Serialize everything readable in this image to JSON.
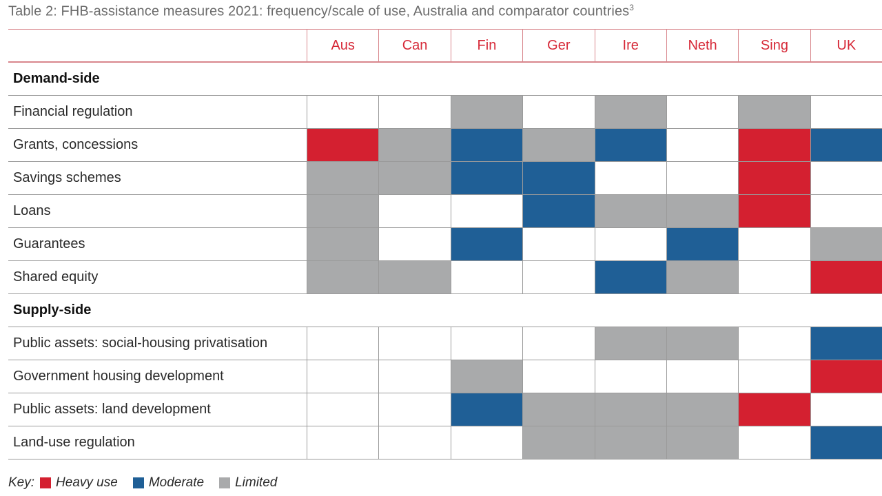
{
  "title": "Table 2: FHB-assistance measures 2021: frequency/scale of use, Australia and comparator countries",
  "title_note": "3",
  "colors": {
    "heavy": "#d42030",
    "moderate": "#1f5f96",
    "limited": "#a9aaab",
    "none": "#ffffff",
    "header_text": "#d62837"
  },
  "key": {
    "label": "Key:",
    "items": [
      {
        "level": "heavy",
        "label": "Heavy use"
      },
      {
        "level": "moderate",
        "label": "Moderate"
      },
      {
        "level": "limited",
        "label": "Limited"
      }
    ]
  },
  "chart_data": {
    "type": "heatmap",
    "columns": [
      "Aus",
      "Can",
      "Fin",
      "Ger",
      "Ire",
      "Neth",
      "Sing",
      "UK"
    ],
    "sections": [
      {
        "name": "Demand-side",
        "rows": [
          {
            "label": "Financial regulation",
            "values": [
              "none",
              "none",
              "limited",
              "none",
              "limited",
              "none",
              "limited",
              "none"
            ]
          },
          {
            "label": "Grants, concessions",
            "values": [
              "heavy",
              "limited",
              "moderate",
              "limited",
              "moderate",
              "none",
              "heavy",
              "moderate"
            ]
          },
          {
            "label": "Savings schemes",
            "values": [
              "limited",
              "limited",
              "moderate",
              "moderate",
              "none",
              "none",
              "heavy",
              "none"
            ]
          },
          {
            "label": "Loans",
            "values": [
              "limited",
              "none",
              "none",
              "moderate",
              "limited",
              "limited",
              "heavy",
              "none"
            ]
          },
          {
            "label": "Guarantees",
            "values": [
              "limited",
              "none",
              "moderate",
              "none",
              "none",
              "moderate",
              "none",
              "limited"
            ]
          },
          {
            "label": "Shared equity",
            "values": [
              "limited",
              "limited",
              "none",
              "none",
              "moderate",
              "limited",
              "none",
              "heavy"
            ]
          }
        ]
      },
      {
        "name": "Supply-side",
        "rows": [
          {
            "label": "Public assets: social-housing privatisation",
            "values": [
              "none",
              "none",
              "none",
              "none",
              "limited",
              "limited",
              "none",
              "moderate"
            ]
          },
          {
            "label": "Government housing development",
            "values": [
              "none",
              "none",
              "limited",
              "none",
              "none",
              "none",
              "none",
              "heavy"
            ]
          },
          {
            "label": "Public assets: land development",
            "values": [
              "none",
              "none",
              "moderate",
              "limited",
              "limited",
              "limited",
              "heavy",
              "none"
            ]
          },
          {
            "label": "Land-use regulation",
            "values": [
              "none",
              "none",
              "none",
              "limited",
              "limited",
              "limited",
              "none",
              "moderate"
            ]
          }
        ]
      }
    ]
  }
}
